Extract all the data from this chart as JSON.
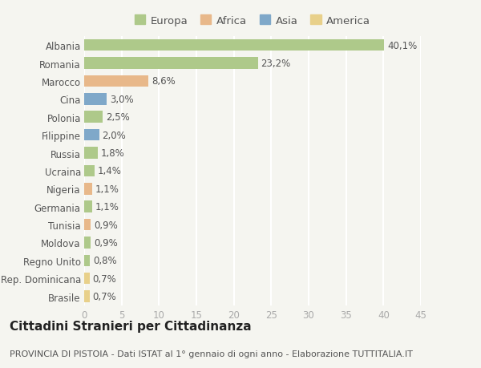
{
  "categories": [
    "Albania",
    "Romania",
    "Marocco",
    "Cina",
    "Polonia",
    "Filippine",
    "Russia",
    "Ucraina",
    "Nigeria",
    "Germania",
    "Tunisia",
    "Moldova",
    "Regno Unito",
    "Rep. Dominicana",
    "Brasile"
  ],
  "values": [
    40.1,
    23.2,
    8.6,
    3.0,
    2.5,
    2.0,
    1.8,
    1.4,
    1.1,
    1.1,
    0.9,
    0.9,
    0.8,
    0.7,
    0.7
  ],
  "labels": [
    "40,1%",
    "23,2%",
    "8,6%",
    "3,0%",
    "2,5%",
    "2,0%",
    "1,8%",
    "1,4%",
    "1,1%",
    "1,1%",
    "0,9%",
    "0,9%",
    "0,8%",
    "0,7%",
    "0,7%"
  ],
  "continents": [
    "Europa",
    "Europa",
    "Africa",
    "Asia",
    "Europa",
    "Asia",
    "Europa",
    "Europa",
    "Africa",
    "Europa",
    "Africa",
    "Europa",
    "Europa",
    "America",
    "America"
  ],
  "colors": {
    "Europa": "#aec98a",
    "Africa": "#e8b88a",
    "Asia": "#7fa8c9",
    "America": "#e8d08a"
  },
  "legend_order": [
    "Europa",
    "Africa",
    "Asia",
    "America"
  ],
  "xlim": [
    0,
    45
  ],
  "xticks": [
    0,
    5,
    10,
    15,
    20,
    25,
    30,
    35,
    40,
    45
  ],
  "title": "Cittadini Stranieri per Cittadinanza",
  "subtitle": "PROVINCIA DI PISTOIA - Dati ISTAT al 1° gennaio di ogni anno - Elaborazione TUTTITALIA.IT",
  "background_color": "#f5f5f0",
  "grid_color": "#ffffff",
  "bar_height": 0.65,
  "title_fontsize": 11,
  "subtitle_fontsize": 8,
  "tick_fontsize": 8.5,
  "label_fontsize": 8.5,
  "legend_fontsize": 9.5
}
